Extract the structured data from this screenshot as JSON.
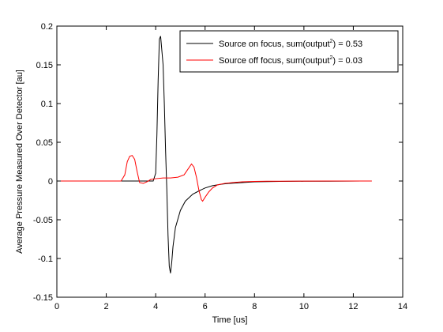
{
  "chart_data": {
    "type": "line",
    "title": "",
    "xlabel": "Time [us]",
    "ylabel": "Average Pressure Measured Over Detector [au]",
    "xlim": [
      0,
      14
    ],
    "ylim": [
      -0.15,
      0.2
    ],
    "xticks": [
      0,
      2,
      4,
      6,
      8,
      10,
      12,
      14
    ],
    "yticks": [
      -0.15,
      -0.1,
      -0.05,
      0,
      0.05,
      0.1,
      0.15,
      0.2
    ],
    "xtick_labels": [
      "0",
      "2",
      "4",
      "6",
      "8",
      "10",
      "12",
      "14"
    ],
    "ytick_labels": [
      "-0.15",
      "-0.1",
      "-0.05",
      "0",
      "0.05",
      "0.1",
      "0.15",
      "0.2"
    ],
    "grid": false,
    "legend_position": "top-right",
    "series": [
      {
        "name": "Source on focus, sum(output2) = 0.53",
        "legend_parts": {
          "before": "Source on focus, sum(output",
          "sup": "2",
          "after": ") = 0.53"
        },
        "color": "#000000",
        "x": [
          0,
          3.9,
          4.0,
          4.05,
          4.1,
          4.15,
          4.2,
          4.3,
          4.35,
          4.4,
          4.45,
          4.5,
          4.55,
          4.6,
          4.65,
          4.7,
          4.8,
          5.0,
          5.2,
          5.5,
          5.8,
          6.0,
          6.3,
          6.7,
          7.0,
          7.5,
          8.0,
          9.0,
          10.0,
          11.0,
          11.8,
          12.3
        ],
        "y": [
          0,
          0,
          0.01,
          0.06,
          0.13,
          0.183,
          0.187,
          0.15,
          0.1,
          0.04,
          -0.01,
          -0.07,
          -0.11,
          -0.119,
          -0.105,
          -0.085,
          -0.06,
          -0.038,
          -0.026,
          -0.017,
          -0.012,
          -0.009,
          -0.006,
          -0.004,
          -0.003,
          -0.002,
          -0.001,
          -0.0005,
          -0.0003,
          -0.0002,
          -0.0001,
          0
        ]
      },
      {
        "name": "Source off focus, sum(output2) = 0.03",
        "legend_parts": {
          "before": "Source off focus, sum(output",
          "sup": "2",
          "after": ") = 0.03"
        },
        "color": "#ff0000",
        "x": [
          0,
          2.6,
          2.75,
          2.85,
          2.95,
          3.05,
          3.15,
          3.25,
          3.35,
          3.5,
          3.65,
          3.8,
          4.0,
          4.3,
          4.6,
          4.9,
          5.15,
          5.3,
          5.45,
          5.55,
          5.65,
          5.75,
          5.85,
          5.9,
          6.0,
          6.15,
          6.3,
          6.5,
          6.8,
          7.1,
          7.5,
          8.0,
          8.5,
          9.0,
          10.0,
          11.0,
          12.0,
          12.75
        ],
        "y": [
          0,
          0,
          0.008,
          0.025,
          0.032,
          0.033,
          0.028,
          0.012,
          -0.002,
          -0.003,
          -0.001,
          0.002,
          0.003,
          0.004,
          0.004,
          0.005,
          0.008,
          0.015,
          0.022,
          0.018,
          0.005,
          -0.012,
          -0.024,
          -0.026,
          -0.021,
          -0.014,
          -0.009,
          -0.005,
          -0.003,
          -0.002,
          -0.001,
          -0.0005,
          -0.0003,
          -0.0002,
          -0.0001,
          0,
          0,
          0
        ]
      }
    ]
  }
}
